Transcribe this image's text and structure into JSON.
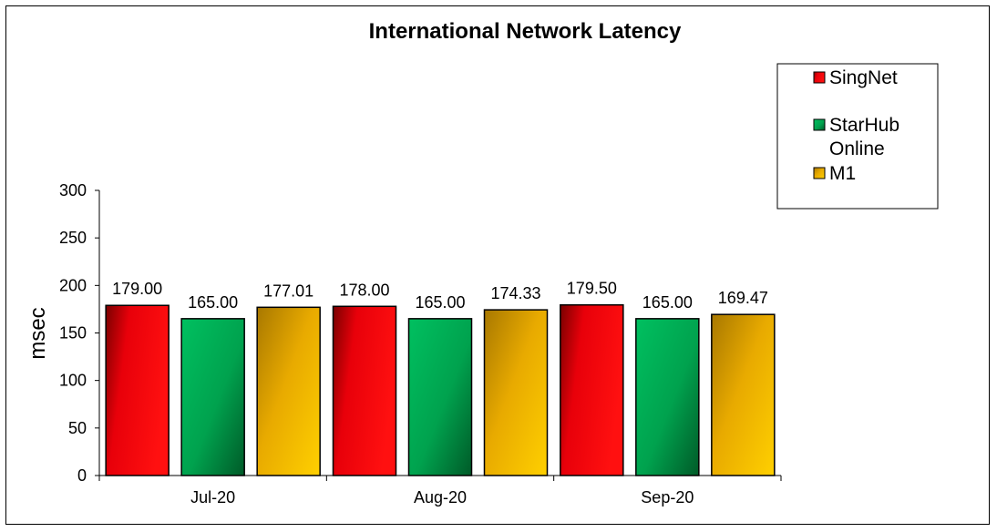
{
  "chart_data": {
    "type": "bar",
    "title": "International Network Latency",
    "xlabel": "",
    "ylabel": "msec",
    "ylim": [
      0,
      300
    ],
    "yticks": [
      0,
      50,
      100,
      150,
      200,
      250,
      300
    ],
    "categories": [
      "Jul-20",
      "Aug-20",
      "Sep-20"
    ],
    "series": [
      {
        "name": "SingNet",
        "values": [
          179.0,
          178.0,
          179.5
        ],
        "labels": [
          "179.00",
          "178.00",
          "179.50"
        ],
        "color": "#e8000a"
      },
      {
        "name": "StarHub Online",
        "values": [
          165.0,
          165.0,
          165.0
        ],
        "labels": [
          "165.00",
          "165.00",
          "165.00"
        ],
        "color": "#00a650"
      },
      {
        "name": "M1",
        "values": [
          177.01,
          174.33,
          169.47
        ],
        "labels": [
          "177.01",
          "174.33",
          "169.47"
        ],
        "color": "#f0b400"
      }
    ],
    "legend": {
      "placement": "top-right",
      "entries": [
        "SingNet",
        "StarHub Online",
        "M1"
      ]
    },
    "grid": false
  }
}
